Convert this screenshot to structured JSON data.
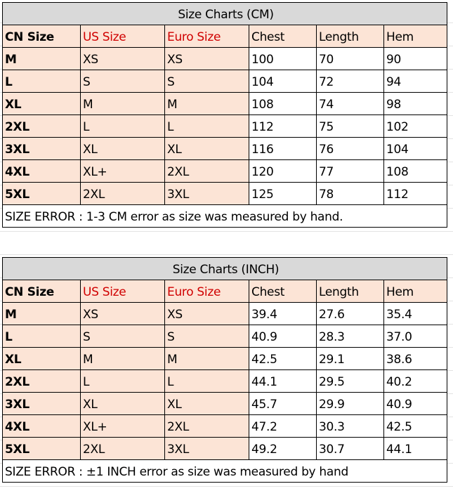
{
  "tables": [
    {
      "title": "Size Charts (CM)",
      "headers": [
        "CN Size",
        "US Size",
        "Euro Size",
        "Chest",
        "Length",
        "Hem"
      ],
      "rows": [
        [
          "M",
          "XS",
          "XS",
          "100",
          "70",
          "90"
        ],
        [
          "L",
          "S",
          "S",
          "104",
          "72",
          "94"
        ],
        [
          "XL",
          "M",
          "M",
          "108",
          "74",
          "98"
        ],
        [
          "2XL",
          "L",
          "L",
          "112",
          "75",
          "102"
        ],
        [
          "3XL",
          "XL",
          "XL",
          "116",
          "76",
          "104"
        ],
        [
          "4XL",
          "XL+",
          "2XL",
          "120",
          "77",
          "108"
        ],
        [
          "5XL",
          "2XL",
          "3XL",
          "125",
          "78",
          "112"
        ]
      ],
      "note": "SIZE ERROR : 1-3 CM error as size was measured by hand."
    },
    {
      "title": "Size Charts (INCH)",
      "headers": [
        "CN Size",
        "US Size",
        "Euro Size",
        "Chest",
        "Length",
        "Hem"
      ],
      "rows": [
        [
          "M",
          "XS",
          "XS",
          "39.4",
          "27.6",
          "35.4"
        ],
        [
          "L",
          "S",
          "S",
          "40.9",
          "28.3",
          "37.0"
        ],
        [
          "XL",
          "M",
          "M",
          "42.5",
          "29.1",
          "38.6"
        ],
        [
          "2XL",
          "L",
          "L",
          "44.1",
          "29.5",
          "40.2"
        ],
        [
          "3XL",
          "XL",
          "XL",
          "45.7",
          "29.9",
          "40.9"
        ],
        [
          "4XL",
          "XL+",
          "2XL",
          "47.2",
          "30.3",
          "42.5"
        ],
        [
          "5XL",
          "2XL",
          "3XL",
          "49.2",
          "30.7",
          "44.1"
        ]
      ],
      "note": "SIZE ERROR : ±1 INCH error as size was measured by hand"
    }
  ],
  "colors": {
    "title_bg": "#d9d9d9",
    "header_bg": "#fce4d6",
    "accent_red": "#d00000"
  }
}
